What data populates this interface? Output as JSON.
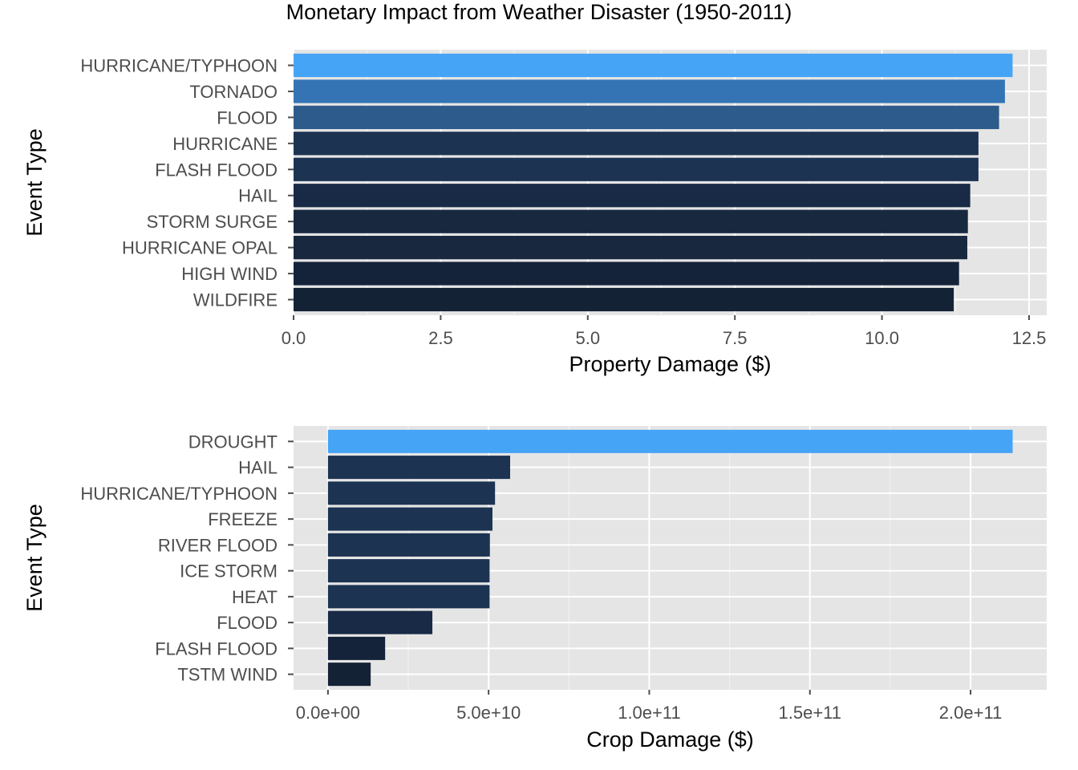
{
  "title": "Monetary Impact from Weather Disaster (1950-2011)",
  "chart_data": [
    {
      "type": "bar",
      "orientation": "horizontal",
      "ylabel": "Event Type",
      "xlabel": "Property Damage ($)",
      "xlim": [
        0,
        12.8
      ],
      "x_ticks": [
        0,
        2.5,
        5,
        7.5,
        10,
        12.5
      ],
      "x_tick_labels": [
        "0.0",
        "2.5",
        "5.0",
        "7.5",
        "10.0",
        "12.5"
      ],
      "categories": [
        "HURRICANE/TYPHOON",
        "TORNADO",
        "FLOOD",
        "HURRICANE",
        "FLASH FLOOD",
        "HAIL",
        "STORM SURGE",
        "HURRICANE OPAL",
        "HIGH WIND",
        "WILDFIRE"
      ],
      "values": [
        12.22,
        12.09,
        11.99,
        11.64,
        11.64,
        11.5,
        11.46,
        11.45,
        11.31,
        11.22
      ],
      "colors": [
        "#46a4f6",
        "#3574b4",
        "#2c5b8c",
        "#1c3352",
        "#1c3352",
        "#182a45",
        "#17283f",
        "#17283f",
        "#15233a",
        "#142236"
      ],
      "grid": true,
      "legend": "none"
    },
    {
      "type": "bar",
      "orientation": "horizontal",
      "ylabel": "Event Type",
      "xlabel": "Crop Damage ($)",
      "xlim": [
        -10700000000,
        223700000000
      ],
      "x_ticks": [
        0,
        50000000000,
        100000000000,
        150000000000,
        200000000000
      ],
      "x_tick_labels": [
        "0.0e+00",
        "5.0e+10",
        "1.0e+11",
        "1.5e+11",
        "2.0e+11"
      ],
      "categories": [
        "DROUGHT",
        "HAIL",
        "HURRICANE/TYPHOON",
        "FREEZE",
        "RIVER FLOOD",
        "ICE STORM",
        "HEAT",
        "FLOOD",
        "FLASH FLOOD",
        "TSTM WIND"
      ],
      "values": [
        213100000000,
        56700000000,
        52000000000,
        51200000000,
        50400000000,
        50300000000,
        50300000000,
        32500000000,
        17800000000,
        13300000000
      ],
      "colors": [
        "#46a4f6",
        "#1c3352",
        "#1c3352",
        "#1c3352",
        "#1c3352",
        "#1c3352",
        "#1c3352",
        "#182a45",
        "#15233a",
        "#142236"
      ],
      "grid": true,
      "legend": "none"
    }
  ]
}
